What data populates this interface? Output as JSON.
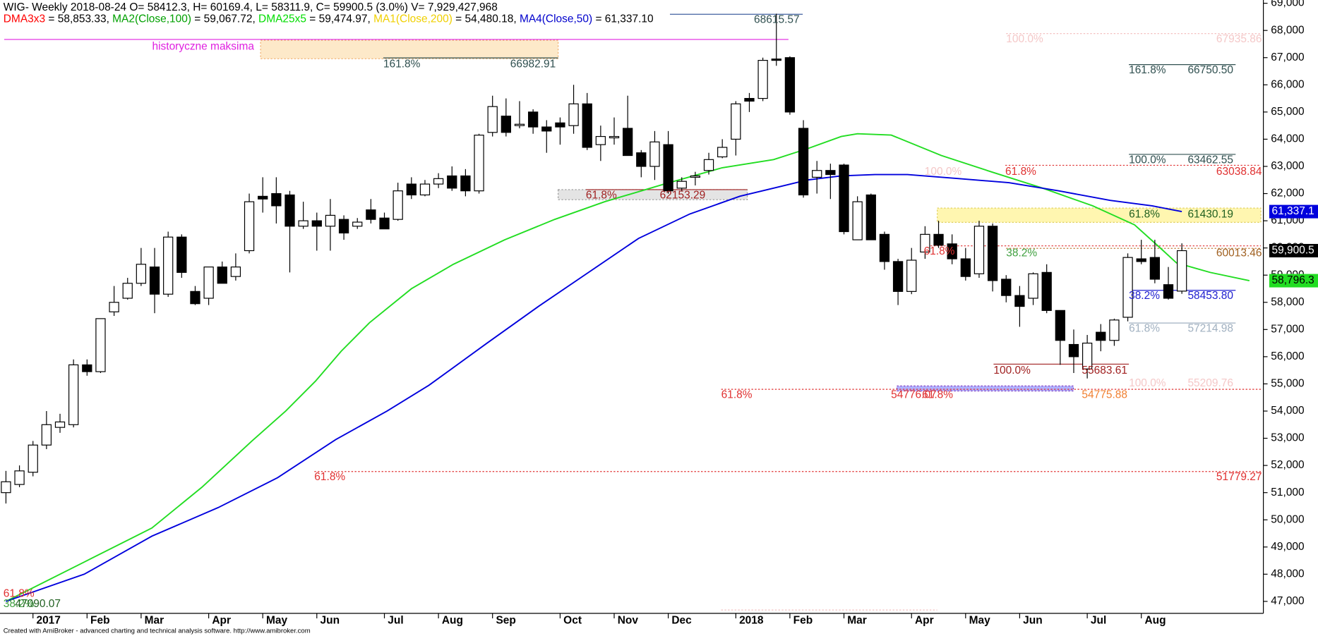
{
  "chart_data": {
    "type": "candlestick",
    "title": "WIG- Weekly 2018-08-24 O= 58412.3, H= 60169.4, L= 58311.9, C= 59900.5 (3.0%) V= 7,929,427,968",
    "indicators_line": [
      {
        "text": "DMA3x3",
        "color": "#ff0000"
      },
      {
        "text": " = 58,853.33, ",
        "color": "#000000"
      },
      {
        "text": "MA2(Close,100)",
        "color": "#00a000"
      },
      {
        "text": " = 59,067.72, ",
        "color": "#000000"
      },
      {
        "text": "DMA25x5",
        "color": "#00dd00"
      },
      {
        "text": " = 59,474.97, ",
        "color": "#000000"
      },
      {
        "text": "MA1(Close,200)",
        "color": "#f0d000"
      },
      {
        "text": " = 54,480.18, ",
        "color": "#000000"
      },
      {
        "text": "MA4(Close,50)",
        "color": "#0000cc"
      },
      {
        "text": " = 61,337.10",
        "color": "#000000"
      }
    ],
    "footer": "Created with AmiBroker - advanced charting and technical analysis software. http://www.amibroker.com",
    "candles": {
      "open": [
        51000,
        51300,
        51750,
        52750,
        53400,
        53500,
        55700,
        55450,
        57650,
        58150,
        58700,
        59300,
        58300,
        60400,
        58400,
        58150,
        59300,
        58950,
        59900,
        61900,
        62000,
        61950,
        60800,
        61000,
        60800,
        61050,
        60800,
        61400,
        61100,
        61050,
        62350,
        61950,
        62350,
        62650,
        62650,
        62100,
        64250,
        64850,
        64500,
        65000,
        64450,
        64600,
        64500,
        65300,
        63800,
        64050,
        64400,
        63500,
        63000,
        63800,
        62200,
        62600,
        62850,
        63350,
        64000,
        65500,
        65500,
        66950,
        67000,
        64400,
        62600,
        62850,
        63050,
        60300,
        61950,
        60500,
        59500,
        58400,
        59850,
        60500,
        60150,
        59600,
        59050,
        60800,
        58850,
        58250,
        58150,
        59100,
        57700,
        56450,
        55550,
        56900,
        56600,
        57450,
        59600,
        59650,
        58650,
        58412.3
      ],
      "high": [
        51800,
        52000,
        52900,
        54000,
        53900,
        55900,
        55900,
        57400,
        58600,
        58900,
        60000,
        60000,
        60600,
        60500,
        58600,
        59300,
        59500,
        59800,
        62000,
        62600,
        62600,
        62100,
        61700,
        61300,
        61800,
        61200,
        61100,
        61800,
        61300,
        62400,
        62600,
        62500,
        62750,
        63000,
        62900,
        64200,
        65600,
        65500,
        65400,
        65100,
        64700,
        64800,
        66000,
        65700,
        64500,
        64800,
        65600,
        63600,
        64300,
        64300,
        62600,
        62800,
        63500,
        64000,
        65400,
        65700,
        67000,
        68615.57,
        67050,
        64700,
        63200,
        63100,
        63100,
        61900,
        62000,
        60600,
        59600,
        60000,
        60800,
        61000,
        60500,
        60000,
        61000,
        60900,
        59000,
        58600,
        59100,
        59400,
        57700,
        57000,
        56800,
        57200,
        57400,
        59800,
        60300,
        60300,
        59300,
        60169.4
      ],
      "low": [
        50600,
        51200,
        51600,
        52600,
        53200,
        53400,
        55300,
        55400,
        57500,
        58100,
        58600,
        57600,
        58200,
        58900,
        57900,
        57900,
        58700,
        58800,
        59800,
        61300,
        60900,
        59100,
        60700,
        59900,
        59900,
        60300,
        60700,
        60900,
        60700,
        61000,
        61800,
        61900,
        62200,
        62100,
        61900,
        62000,
        64100,
        64100,
        64400,
        64200,
        63500,
        63800,
        64200,
        63600,
        63200,
        63800,
        63400,
        62600,
        62500,
        62000,
        62100,
        62300,
        62700,
        63300,
        63400,
        65000,
        65400,
        66700,
        64900,
        61850,
        62000,
        61800,
        60500,
        60300,
        60300,
        59200,
        57900,
        58300,
        59600,
        60000,
        59400,
        58800,
        58900,
        58400,
        58000,
        57100,
        57900,
        57600,
        55700,
        55400,
        55200,
        56200,
        56400,
        57300,
        59400,
        58700,
        58100,
        58311.9
      ],
      "close": [
        51400,
        51800,
        52750,
        53500,
        53600,
        55700,
        55450,
        57400,
        58000,
        58700,
        59400,
        58300,
        60400,
        59100,
        57950,
        59300,
        58700,
        59300,
        61700,
        61800,
        61550,
        60800,
        61000,
        60800,
        61200,
        60550,
        60950,
        61050,
        60700,
        62100,
        61950,
        62350,
        62550,
        62200,
        62100,
        64150,
        65200,
        64250,
        64550,
        64450,
        64300,
        64450,
        65300,
        63700,
        64100,
        64100,
        63400,
        63000,
        63900,
        62100,
        62450,
        62650,
        63250,
        63700,
        65300,
        65400,
        66900,
        66900,
        65000,
        61950,
        62850,
        62700,
        60600,
        61700,
        60300,
        59500,
        58400,
        59550,
        60500,
        60100,
        59600,
        58950,
        60800,
        58800,
        58250,
        57850,
        59050,
        57700,
        56600,
        56000,
        56500,
        56600,
        57350,
        59650,
        59500,
        58850,
        58150,
        59900.5
      ],
      "up_color": "#ffffff",
      "down_color": "#000000",
      "last_label": "59,900.5"
    },
    "series": [
      {
        "name": "DMA25x5",
        "color": "#22dd22",
        "last_label": "58,796.3",
        "x": [
          0,
          5.8,
          10.8,
          14.5,
          18.2,
          20.7,
          22.9,
          24.8,
          26.9,
          30,
          33.1,
          36.9,
          40.6,
          44.3,
          48.7,
          53,
          56.8,
          59.3,
          61.8,
          63,
          65.5,
          69.2,
          72.9,
          76.7,
          80.4,
          83.5,
          85.4,
          86.6,
          89.1,
          92
        ],
        "values": [
          47000,
          48450,
          49700,
          51200,
          52900,
          54000,
          55100,
          56200,
          57250,
          58500,
          59400,
          60300,
          61050,
          61700,
          62350,
          62950,
          63250,
          63650,
          64100,
          64200,
          64150,
          63400,
          62800,
          62200,
          61550,
          60850,
          60000,
          59450,
          59100,
          58796.3
        ]
      },
      {
        "name": "MA4(Close,50)",
        "color": "#0000dd",
        "last_label": "61,337.1",
        "x": [
          0,
          5.8,
          10.8,
          15.7,
          20.1,
          24.4,
          28.2,
          31.3,
          35.6,
          39.4,
          43.1,
          46.8,
          50.6,
          54.3,
          56.8,
          59.3,
          61.8,
          64.3,
          66.7,
          70.5,
          74.2,
          77.9,
          81.7,
          84.8,
          87
        ],
        "values": [
          47000,
          48000,
          49400,
          50450,
          51550,
          52950,
          54000,
          54950,
          56500,
          57850,
          59100,
          60350,
          61250,
          61900,
          62200,
          62500,
          62650,
          62700,
          62700,
          62550,
          62400,
          62100,
          61750,
          61550,
          61337.1
        ]
      }
    ],
    "xlim": [
      -0.44,
      93.03
    ],
    "ylim": [
      46560,
      69120
    ],
    "xticks": [
      {
        "value": 2,
        "label": "2017"
      },
      {
        "value": 6,
        "label": "Feb"
      },
      {
        "value": 10,
        "label": "Mar"
      },
      {
        "value": 15,
        "label": "Apr"
      },
      {
        "value": 19,
        "label": "May"
      },
      {
        "value": 23,
        "label": "Jun"
      },
      {
        "value": 28,
        "label": "Jul"
      },
      {
        "value": 32,
        "label": "Aug"
      },
      {
        "value": 36,
        "label": "Sep"
      },
      {
        "value": 41,
        "label": "Oct"
      },
      {
        "value": 45,
        "label": "Nov"
      },
      {
        "value": 49,
        "label": "Dec"
      },
      {
        "value": 54,
        "label": "2018"
      },
      {
        "value": 58,
        "label": "Feb"
      },
      {
        "value": 62,
        "label": "Mar"
      },
      {
        "value": 67,
        "label": "Apr"
      },
      {
        "value": 71,
        "label": "May"
      },
      {
        "value": 75,
        "label": "Jun"
      },
      {
        "value": 80,
        "label": "Jul"
      },
      {
        "value": 84,
        "label": "Aug"
      }
    ],
    "yticks": [
      {
        "value": 47000,
        "label": "47,000"
      },
      {
        "value": 48000,
        "label": "48,000"
      },
      {
        "value": 49000,
        "label": "49,000"
      },
      {
        "value": 50000,
        "label": "50,000"
      },
      {
        "value": 51000,
        "label": "51,000"
      },
      {
        "value": 52000,
        "label": "52,000"
      },
      {
        "value": 53000,
        "label": "53,000"
      },
      {
        "value": 54000,
        "label": "54,000"
      },
      {
        "value": 55000,
        "label": "55,000"
      },
      {
        "value": 56000,
        "label": "56,000"
      },
      {
        "value": 57000,
        "label": "57,000"
      },
      {
        "value": 58000,
        "label": "58,000"
      },
      {
        "value": 59000,
        "label": "59,000"
      },
      {
        "value": 60000,
        "label": "60,000"
      },
      {
        "value": 61000,
        "label": "61,000"
      },
      {
        "value": 62000,
        "label": "62,000"
      },
      {
        "value": 63000,
        "label": "63,000"
      },
      {
        "value": 64000,
        "label": "64,000"
      },
      {
        "value": 65000,
        "label": "65,000"
      },
      {
        "value": 66000,
        "label": "66,000"
      },
      {
        "value": 67000,
        "label": "67,000"
      },
      {
        "value": 68000,
        "label": "68,000"
      },
      {
        "value": 69000,
        "label": "69,000"
      }
    ],
    "annotations": [
      "historyczne maksima",
      "161.8%",
      "66982.91",
      "68615.57",
      "100.0%",
      "67935.86",
      "161.8%",
      "66750.50",
      "100.0%",
      "63462.55",
      "61.8%",
      "63038.84",
      "100.0%",
      "61.8%",
      "62153.29",
      "61.8%",
      "61430.19",
      "61.8%",
      "38.2%",
      "60013.46",
      "38.2%",
      "58453.80",
      "61.8%",
      "57214.98",
      "100.0%",
      "55683.61",
      "100.0%",
      "55209.76",
      "61.8%",
      "54776.07",
      "61.8%",
      "54775.88",
      "61.8%",
      "51779.27",
      "61.8%",
      "38.2%",
      "47090.07"
    ]
  }
}
